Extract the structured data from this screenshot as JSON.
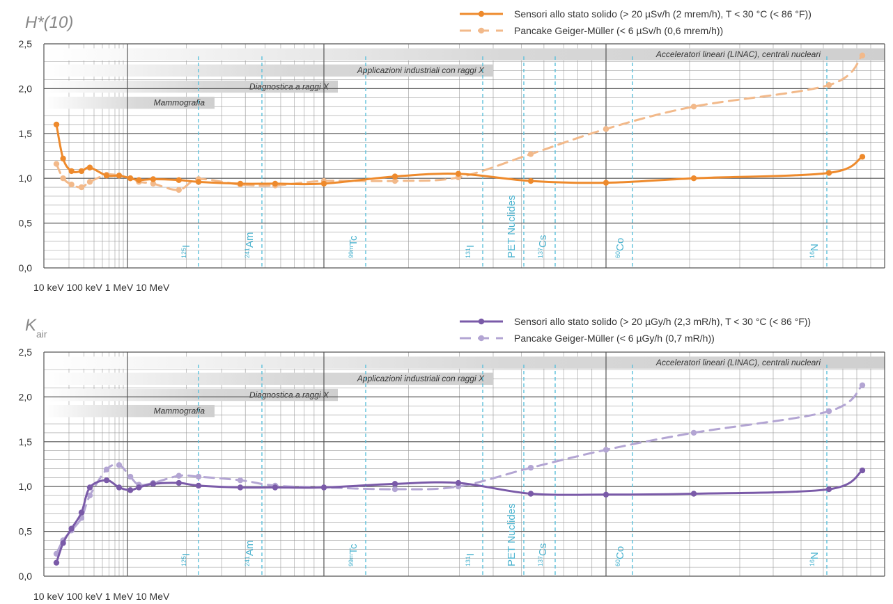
{
  "chart_data": [
    {
      "type": "line",
      "title": "H*(10)",
      "ylim": [
        0,
        2.5
      ],
      "y_ticks": [
        "0,0",
        "0,5",
        "1,0",
        "1,5",
        "2,0",
        "2,5"
      ],
      "x_labels": [
        "10 keV",
        "100 keV",
        "1 MeV",
        "10 MeV"
      ],
      "bands": [
        "Acceleratori lineari (LINAC), centrali nucleari",
        "Applicazioni industriali con raggi X",
        "Diagnostica a raggi X",
        "Mammografia"
      ],
      "nuclides": [
        {
          "sup": "125",
          "sym": "I"
        },
        {
          "sup": "241",
          "sym": "Am"
        },
        {
          "sup": "99m",
          "sym": "Tc"
        },
        {
          "sup": "131",
          "sym": "I"
        },
        {
          "sup": "",
          "sym": "PET Nuclides"
        },
        {
          "sup": "137",
          "sym": "Cs"
        },
        {
          "sup": "60",
          "sym": "Co"
        },
        {
          "sup": "16",
          "sym": "N"
        }
      ],
      "series": [
        {
          "name": "Sensori allo stato solido (> 20 µSv/h (2 mrem/h), T < 30 °C (< 86 °F))",
          "color": "#ee8a2c",
          "style": "solid",
          "points": [
            [
              0.15,
              1.6
            ],
            [
              0.23,
              1.22
            ],
            [
              0.33,
              1.08
            ],
            [
              0.45,
              1.08
            ],
            [
              0.55,
              1.12
            ],
            [
              0.75,
              1.03
            ],
            [
              0.9,
              1.03
            ],
            [
              1.05,
              1.0
            ],
            [
              1.2,
              0.98
            ],
            [
              1.45,
              0.99
            ],
            [
              1.9,
              0.98
            ],
            [
              2.1,
              0.96
            ],
            [
              2.4,
              0.94
            ],
            [
              2.65,
              0.94
            ],
            [
              3.0,
              0.94
            ],
            [
              3.6,
              1.02
            ],
            [
              4.2,
              1.05
            ],
            [
              5.1,
              0.97
            ],
            [
              6.0,
              0.95
            ],
            [
              7.1,
              1.0
            ],
            [
              9.0,
              1.06
            ],
            [
              9.6,
              1.24
            ]
          ]
        },
        {
          "name": "Pancake Geiger-Müller (< 6 µSv/h (0,6 mrem/h))",
          "color": "#f2b98a",
          "style": "dashed",
          "points": [
            [
              0.15,
              1.16
            ],
            [
              0.23,
              1.0
            ],
            [
              0.33,
              0.93
            ],
            [
              0.45,
              0.9
            ],
            [
              0.55,
              0.96
            ],
            [
              0.75,
              1.04
            ],
            [
              0.9,
              1.03
            ],
            [
              1.05,
              1.0
            ],
            [
              1.2,
              0.96
            ],
            [
              1.45,
              0.94
            ],
            [
              1.9,
              0.87
            ],
            [
              2.1,
              0.99
            ],
            [
              2.4,
              0.93
            ],
            [
              2.65,
              0.92
            ],
            [
              3.0,
              0.97
            ],
            [
              3.6,
              0.97
            ],
            [
              4.2,
              1.01
            ],
            [
              5.1,
              1.27
            ],
            [
              6.0,
              1.55
            ],
            [
              7.1,
              1.8
            ],
            [
              9.0,
              2.04
            ],
            [
              9.6,
              2.37
            ]
          ]
        }
      ]
    },
    {
      "type": "line",
      "title_main": "K",
      "title_sub": "air",
      "ylim": [
        0,
        2.5
      ],
      "y_ticks": [
        "0,0",
        "0,5",
        "1,0",
        "1,5",
        "2,0",
        "2,5"
      ],
      "x_labels": [
        "10 keV",
        "100 keV",
        "1 MeV",
        "10 MeV"
      ],
      "bands": [
        "Acceleratori lineari (LINAC), centrali nucleari",
        "Applicazioni industriali con raggi X",
        "Diagnostica a raggi X",
        "Mammografia"
      ],
      "nuclides": [
        {
          "sup": "125",
          "sym": "I"
        },
        {
          "sup": "241",
          "sym": "Am"
        },
        {
          "sup": "99m",
          "sym": "Tc"
        },
        {
          "sup": "131",
          "sym": "I"
        },
        {
          "sup": "",
          "sym": "PET Nuclides"
        },
        {
          "sup": "137",
          "sym": "Cs"
        },
        {
          "sup": "60",
          "sym": "Co"
        },
        {
          "sup": "16",
          "sym": "N"
        }
      ],
      "series": [
        {
          "name": "Sensori allo stato solido (> 20 µGy/h (2,3 mR/h), T < 30 °C (< 86 °F))",
          "color": "#7a5aa8",
          "style": "solid",
          "points": [
            [
              0.15,
              0.15
            ],
            [
              0.23,
              0.37
            ],
            [
              0.33,
              0.53
            ],
            [
              0.45,
              0.71
            ],
            [
              0.55,
              0.99
            ],
            [
              0.75,
              1.07
            ],
            [
              0.9,
              0.99
            ],
            [
              1.05,
              0.96
            ],
            [
              1.2,
              0.99
            ],
            [
              1.45,
              1.03
            ],
            [
              1.9,
              1.04
            ],
            [
              2.1,
              1.01
            ],
            [
              2.4,
              0.99
            ],
            [
              2.65,
              0.99
            ],
            [
              3.0,
              0.99
            ],
            [
              3.6,
              1.03
            ],
            [
              4.2,
              1.04
            ],
            [
              5.1,
              0.92
            ],
            [
              6.0,
              0.91
            ],
            [
              7.1,
              0.92
            ],
            [
              9.0,
              0.97
            ],
            [
              9.6,
              1.18
            ]
          ]
        },
        {
          "name": "Pancake Geiger-Müller (< 6 µGy/h (0,7 mR/h))",
          "color": "#b3a5d3",
          "style": "dashed",
          "points": [
            [
              0.15,
              0.25
            ],
            [
              0.23,
              0.4
            ],
            [
              0.33,
              0.51
            ],
            [
              0.45,
              0.65
            ],
            [
              0.55,
              0.9
            ],
            [
              0.75,
              1.19
            ],
            [
              0.9,
              1.24
            ],
            [
              1.05,
              1.11
            ],
            [
              1.2,
              1.02
            ],
            [
              1.45,
              1.04
            ],
            [
              1.9,
              1.12
            ],
            [
              2.1,
              1.11
            ],
            [
              2.4,
              1.07
            ],
            [
              2.65,
              1.01
            ],
            [
              3.0,
              0.99
            ],
            [
              3.6,
              0.97
            ],
            [
              4.2,
              1.0
            ],
            [
              5.1,
              1.21
            ],
            [
              6.0,
              1.41
            ],
            [
              7.1,
              1.6
            ],
            [
              9.0,
              1.84
            ],
            [
              9.6,
              2.13
            ]
          ]
        }
      ]
    }
  ]
}
